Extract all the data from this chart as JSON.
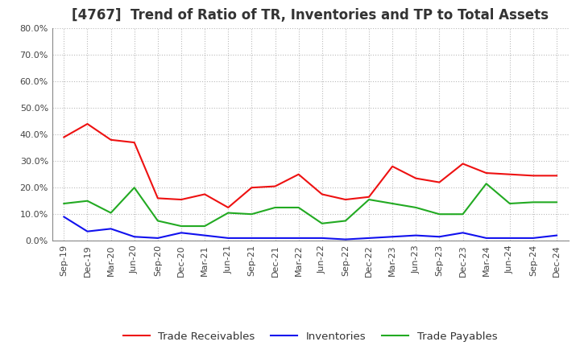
{
  "title": "[4767]  Trend of Ratio of TR, Inventories and TP to Total Assets",
  "x_labels": [
    "Sep-19",
    "Dec-19",
    "Mar-20",
    "Jun-20",
    "Sep-20",
    "Dec-20",
    "Mar-21",
    "Jun-21",
    "Sep-21",
    "Dec-21",
    "Mar-22",
    "Jun-22",
    "Sep-22",
    "Dec-22",
    "Mar-23",
    "Jun-23",
    "Sep-23",
    "Dec-23",
    "Mar-24",
    "Jun-24",
    "Sep-24",
    "Dec-24"
  ],
  "trade_receivables": [
    0.39,
    0.44,
    0.38,
    0.37,
    0.16,
    0.155,
    0.175,
    0.125,
    0.2,
    0.205,
    0.25,
    0.175,
    0.155,
    0.165,
    0.28,
    0.235,
    0.22,
    0.29,
    0.255,
    0.25,
    0.245,
    0.245
  ],
  "inventories": [
    0.09,
    0.035,
    0.045,
    0.015,
    0.01,
    0.03,
    0.02,
    0.01,
    0.01,
    0.01,
    0.01,
    0.01,
    0.005,
    0.01,
    0.015,
    0.02,
    0.015,
    0.03,
    0.01,
    0.01,
    0.01,
    0.02
  ],
  "trade_payables": [
    0.14,
    0.15,
    0.105,
    0.2,
    0.075,
    0.055,
    0.055,
    0.105,
    0.1,
    0.125,
    0.125,
    0.065,
    0.075,
    0.155,
    0.14,
    0.125,
    0.1,
    0.1,
    0.215,
    0.14,
    0.145,
    0.145
  ],
  "ylim": [
    0,
    0.8
  ],
  "yticks": [
    0.0,
    0.1,
    0.2,
    0.3,
    0.4,
    0.5,
    0.6,
    0.7,
    0.8
  ],
  "line_color_tr": "#EE1111",
  "line_color_inv": "#1111EE",
  "line_color_tp": "#22AA22",
  "bg_color": "#FFFFFF",
  "plot_bg_color": "#FFFFFF",
  "grid_color": "#BBBBBB",
  "legend_tr": "Trade Receivables",
  "legend_inv": "Inventories",
  "legend_tp": "Trade Payables",
  "title_fontsize": 12,
  "tick_fontsize": 8,
  "legend_fontsize": 9.5
}
